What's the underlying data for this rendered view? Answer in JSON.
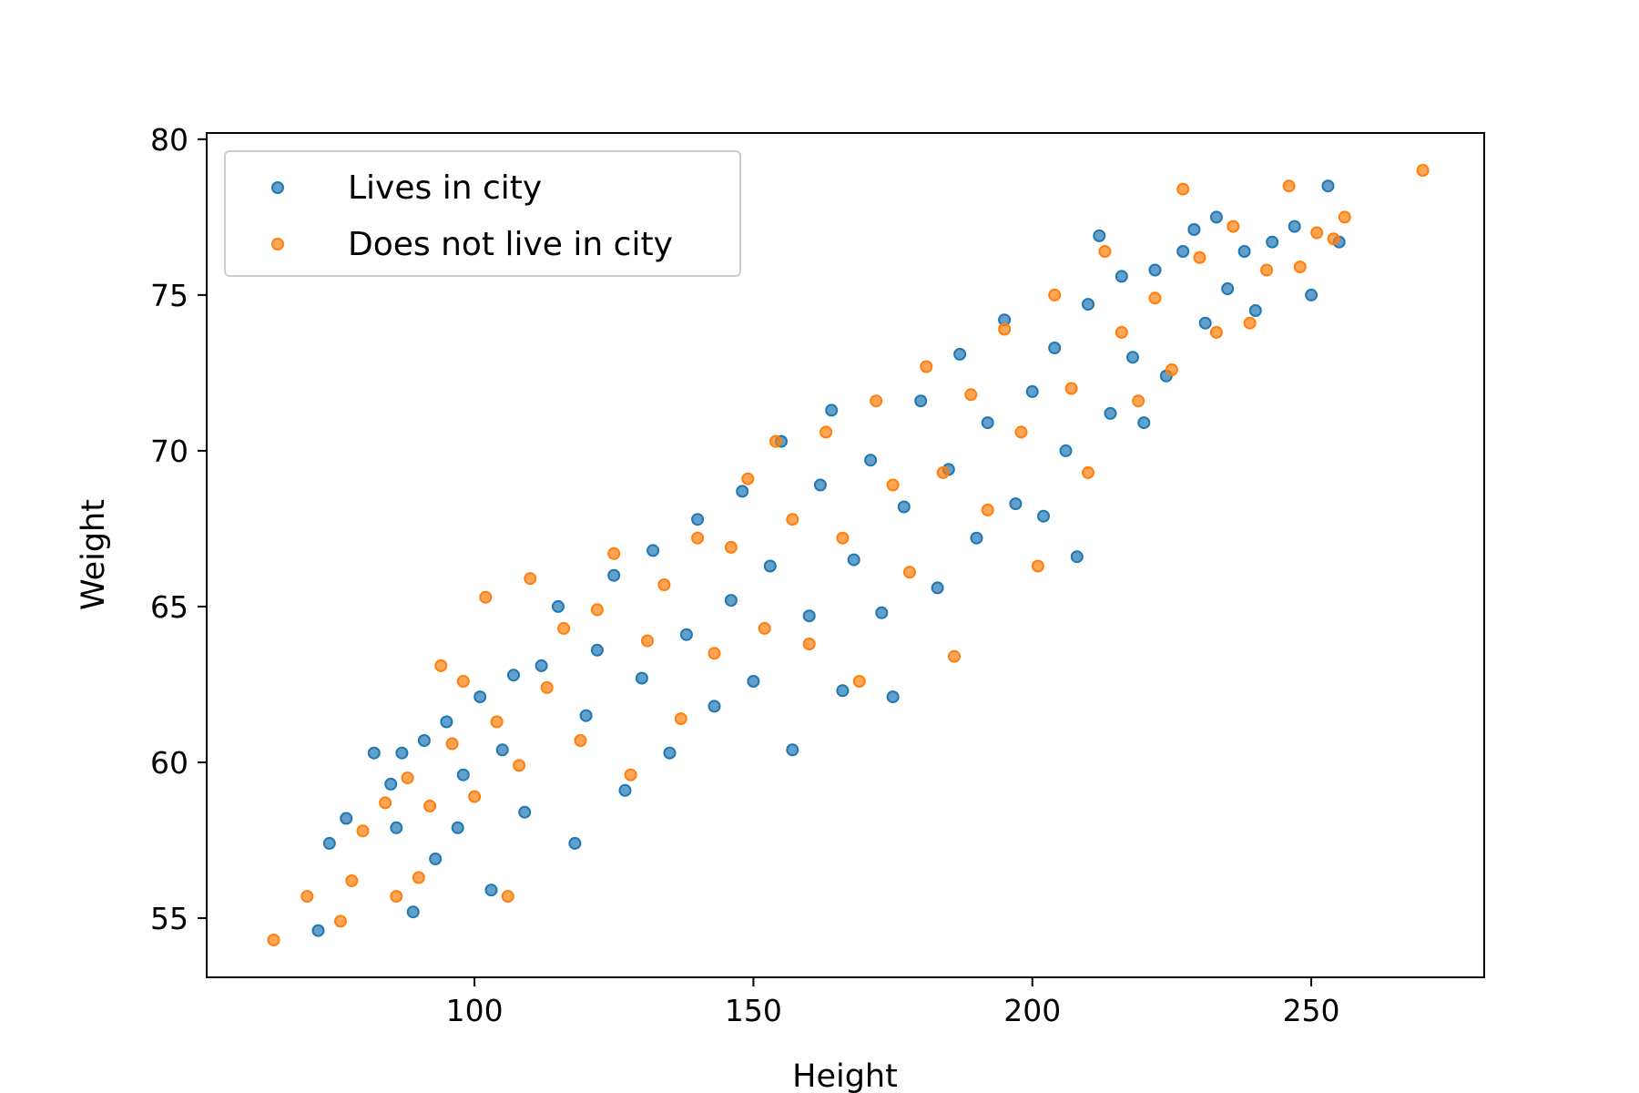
{
  "chart_data": {
    "type": "scatter",
    "title": "",
    "xlabel": "Height",
    "ylabel": "Weight",
    "xlim": [
      52,
      281
    ],
    "ylim": [
      53.1,
      80.2
    ],
    "xticks": [
      100,
      150,
      200,
      250
    ],
    "yticks": [
      55,
      60,
      65,
      70,
      75,
      80
    ],
    "grid": false,
    "legend_position": "upper-left",
    "series": [
      {
        "name": "Lives in city",
        "color": "#1f77b4",
        "points": [
          [
            72,
            54.6
          ],
          [
            74,
            57.4
          ],
          [
            77,
            58.2
          ],
          [
            82,
            60.3
          ],
          [
            85,
            59.3
          ],
          [
            86,
            57.9
          ],
          [
            87,
            60.3
          ],
          [
            89,
            55.2
          ],
          [
            91,
            60.7
          ],
          [
            93,
            56.9
          ],
          [
            95,
            61.3
          ],
          [
            97,
            57.9
          ],
          [
            98,
            59.6
          ],
          [
            101,
            62.1
          ],
          [
            103,
            55.9
          ],
          [
            105,
            60.4
          ],
          [
            107,
            62.8
          ],
          [
            109,
            58.4
          ],
          [
            112,
            63.1
          ],
          [
            115,
            65.0
          ],
          [
            118,
            57.4
          ],
          [
            120,
            61.5
          ],
          [
            122,
            63.6
          ],
          [
            125,
            66.0
          ],
          [
            127,
            59.1
          ],
          [
            130,
            62.7
          ],
          [
            132,
            66.8
          ],
          [
            135,
            60.3
          ],
          [
            138,
            64.1
          ],
          [
            140,
            67.8
          ],
          [
            143,
            61.8
          ],
          [
            146,
            65.2
          ],
          [
            148,
            68.7
          ],
          [
            150,
            62.6
          ],
          [
            153,
            66.3
          ],
          [
            155,
            70.3
          ],
          [
            157,
            60.4
          ],
          [
            160,
            64.7
          ],
          [
            162,
            68.9
          ],
          [
            164,
            71.3
          ],
          [
            166,
            62.3
          ],
          [
            168,
            66.5
          ],
          [
            171,
            69.7
          ],
          [
            173,
            64.8
          ],
          [
            175,
            62.1
          ],
          [
            177,
            68.2
          ],
          [
            180,
            71.6
          ],
          [
            183,
            65.6
          ],
          [
            185,
            69.4
          ],
          [
            187,
            73.1
          ],
          [
            190,
            67.2
          ],
          [
            192,
            70.9
          ],
          [
            195,
            74.2
          ],
          [
            197,
            68.3
          ],
          [
            200,
            71.9
          ],
          [
            202,
            67.9
          ],
          [
            204,
            73.3
          ],
          [
            206,
            70.0
          ],
          [
            208,
            66.6
          ],
          [
            210,
            74.7
          ],
          [
            212,
            76.9
          ],
          [
            214,
            71.2
          ],
          [
            216,
            75.6
          ],
          [
            218,
            73.0
          ],
          [
            220,
            70.9
          ],
          [
            222,
            75.8
          ],
          [
            224,
            72.4
          ],
          [
            227,
            76.4
          ],
          [
            229,
            77.1
          ],
          [
            231,
            74.1
          ],
          [
            233,
            77.5
          ],
          [
            235,
            75.2
          ],
          [
            238,
            76.4
          ],
          [
            240,
            74.5
          ],
          [
            243,
            76.7
          ],
          [
            247,
            77.2
          ],
          [
            250,
            75.0
          ],
          [
            253,
            78.5
          ],
          [
            255,
            76.7
          ]
        ]
      },
      {
        "name": "Does not live in city",
        "color": "#ff7f0e",
        "points": [
          [
            64,
            54.3
          ],
          [
            70,
            55.7
          ],
          [
            76,
            54.9
          ],
          [
            78,
            56.2
          ],
          [
            80,
            57.8
          ],
          [
            84,
            58.7
          ],
          [
            86,
            55.7
          ],
          [
            88,
            59.5
          ],
          [
            90,
            56.3
          ],
          [
            92,
            58.6
          ],
          [
            94,
            63.1
          ],
          [
            96,
            60.6
          ],
          [
            98,
            62.6
          ],
          [
            100,
            58.9
          ],
          [
            102,
            65.3
          ],
          [
            104,
            61.3
          ],
          [
            106,
            55.7
          ],
          [
            108,
            59.9
          ],
          [
            110,
            65.9
          ],
          [
            113,
            62.4
          ],
          [
            116,
            64.3
          ],
          [
            119,
            60.7
          ],
          [
            122,
            64.9
          ],
          [
            125,
            66.7
          ],
          [
            128,
            59.6
          ],
          [
            131,
            63.9
          ],
          [
            134,
            65.7
          ],
          [
            137,
            61.4
          ],
          [
            140,
            67.2
          ],
          [
            143,
            63.5
          ],
          [
            146,
            66.9
          ],
          [
            149,
            69.1
          ],
          [
            152,
            64.3
          ],
          [
            154,
            70.3
          ],
          [
            157,
            67.8
          ],
          [
            160,
            63.8
          ],
          [
            163,
            70.6
          ],
          [
            166,
            67.2
          ],
          [
            169,
            62.6
          ],
          [
            172,
            71.6
          ],
          [
            175,
            68.9
          ],
          [
            178,
            66.1
          ],
          [
            181,
            72.7
          ],
          [
            184,
            69.3
          ],
          [
            186,
            63.4
          ],
          [
            189,
            71.8
          ],
          [
            192,
            68.1
          ],
          [
            195,
            73.9
          ],
          [
            198,
            70.6
          ],
          [
            201,
            66.3
          ],
          [
            204,
            75.0
          ],
          [
            207,
            72.0
          ],
          [
            210,
            69.3
          ],
          [
            213,
            76.4
          ],
          [
            216,
            73.8
          ],
          [
            219,
            71.6
          ],
          [
            222,
            74.9
          ],
          [
            225,
            72.6
          ],
          [
            227,
            78.4
          ],
          [
            230,
            76.2
          ],
          [
            233,
            73.8
          ],
          [
            236,
            77.2
          ],
          [
            239,
            74.1
          ],
          [
            242,
            75.8
          ],
          [
            246,
            78.5
          ],
          [
            248,
            75.9
          ],
          [
            251,
            77.0
          ],
          [
            254,
            76.8
          ],
          [
            256,
            77.5
          ],
          [
            270,
            79.0
          ]
        ]
      }
    ]
  }
}
